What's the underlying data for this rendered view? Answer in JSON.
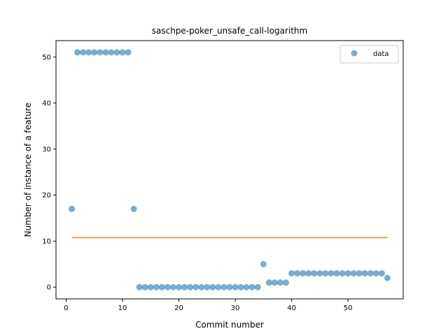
{
  "chart_data": {
    "type": "scatter",
    "title": "saschpe-poker_unsafe_call-logarithm",
    "xlabel": "Commit number",
    "ylabel": "Number of instance of a feature",
    "xlim": [
      -1.8,
      59.8
    ],
    "ylim": [
      -2.55,
      53.55
    ],
    "xticks": [
      0,
      10,
      20,
      30,
      40,
      50
    ],
    "yticks": [
      0,
      10,
      20,
      30,
      40,
      50
    ],
    "grid": false,
    "legend": {
      "position": "upper right",
      "entries": [
        "data"
      ]
    },
    "series": [
      {
        "name": "data",
        "color": "#1f77b4",
        "x": [
          1,
          2,
          3,
          4,
          5,
          6,
          7,
          8,
          9,
          10,
          11,
          12,
          13,
          14,
          15,
          16,
          17,
          18,
          19,
          20,
          21,
          22,
          23,
          24,
          25,
          26,
          27,
          28,
          29,
          30,
          31,
          32,
          33,
          34,
          35,
          36,
          37,
          38,
          39,
          40,
          41,
          42,
          43,
          44,
          45,
          46,
          47,
          48,
          49,
          50,
          51,
          52,
          53,
          54,
          55,
          56,
          57
        ],
        "y": [
          17,
          51,
          51,
          51,
          51,
          51,
          51,
          51,
          51,
          51,
          51,
          17,
          0,
          0,
          0,
          0,
          0,
          0,
          0,
          0,
          0,
          0,
          0,
          0,
          0,
          0,
          0,
          0,
          0,
          0,
          0,
          0,
          0,
          0,
          5,
          1,
          1,
          1,
          1,
          3,
          3,
          3,
          3,
          3,
          3,
          3,
          3,
          3,
          3,
          3,
          3,
          3,
          3,
          3,
          3,
          3,
          2
        ]
      }
    ],
    "fit_line": {
      "color": "#ff7f0e",
      "x": [
        1,
        57
      ],
      "y": [
        10.75,
        10.75
      ]
    }
  }
}
